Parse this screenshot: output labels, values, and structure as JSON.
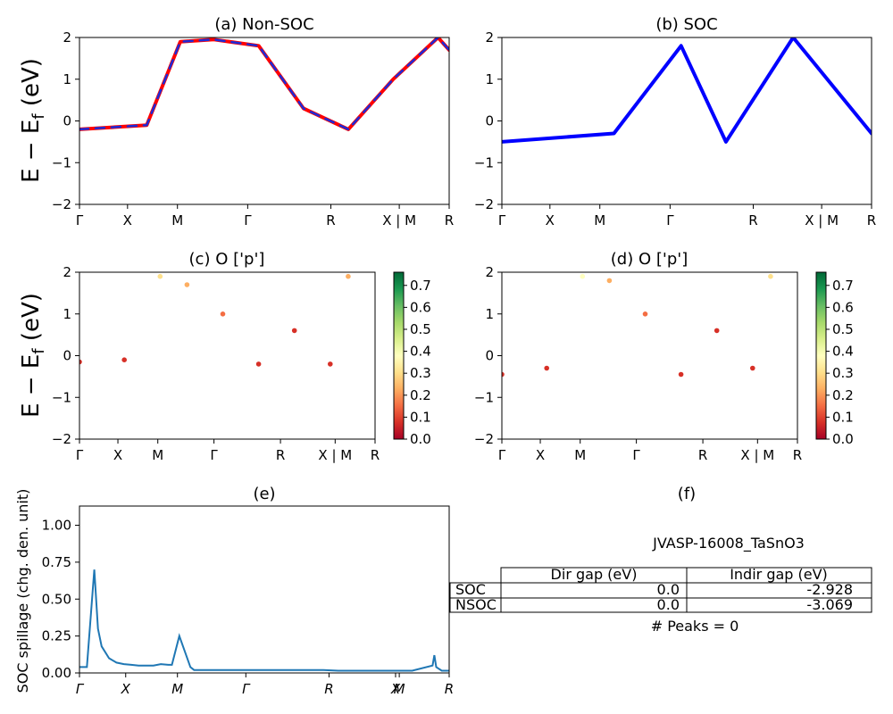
{
  "panels": {
    "a": {
      "title": "(a) Non-SOC"
    },
    "b": {
      "title": "(b) SOC"
    },
    "c": {
      "title": "(c)  O ['p']"
    },
    "d": {
      "title": "(d) O ['p']"
    },
    "e": {
      "title": "(e)"
    },
    "f": {
      "title": "(f)"
    }
  },
  "band_axis": {
    "ylabel_main": "E − E",
    "ylabel_sub": "f",
    "ylabel_tail": " (eV)",
    "yticks": [
      "2",
      "1",
      "0",
      "−1",
      "−2"
    ],
    "kpath_labels": [
      "Γ",
      "X",
      "M",
      "Γ",
      "R",
      "X | M",
      "R"
    ]
  },
  "colorbar": {
    "ticks": [
      "0.7",
      "0.6",
      "0.5",
      "0.4",
      "0.3",
      "0.2",
      "0.1",
      "0.0"
    ],
    "colors": [
      "#a50026",
      "#d73027",
      "#f46d43",
      "#fdae61",
      "#fee08b",
      "#ffffbf",
      "#d9ef8b",
      "#a6d96a",
      "#66bd63",
      "#1a9850",
      "#006837"
    ]
  },
  "spillage_axis": {
    "ylabel": "SOC spillage (chg. den. unit)",
    "yticks": [
      "1.00",
      "0.75",
      "0.50",
      "0.25",
      "0.00"
    ],
    "kpath_labels": [
      "Γ",
      "X",
      "M",
      "Γ",
      "R",
      "X",
      "M",
      "R"
    ]
  },
  "info": {
    "material": "JVASP-16008_TaSnO3",
    "table_header": [
      "",
      "Dir gap (eV)",
      "Indir gap (eV)"
    ],
    "table_rows": [
      {
        "label": "SOC",
        "dir": "0.0",
        "indir": "-2.928"
      },
      {
        "label": "NSOC",
        "dir": "0.0",
        "indir": "-3.069"
      }
    ],
    "peaks": "# Peaks = 0"
  },
  "chart_data": [
    {
      "type": "line",
      "title": "(a) Non-SOC",
      "ylabel": "E − E_f (eV)",
      "ylim": [
        -2,
        2
      ],
      "x_ticks": [
        "Γ",
        "X",
        "M",
        "Γ",
        "R",
        "X | M",
        "R"
      ],
      "series": [
        {
          "color": "#ff0000",
          "style": "solid",
          "x": [
            0,
            0.6,
            0.9,
            1.2,
            1.6,
            2.0,
            2.4,
            2.8,
            3.2,
            3.3
          ],
          "y": [
            -0.2,
            -0.1,
            1.9,
            1.95,
            1.8,
            0.3,
            -0.2,
            1.0,
            2.0,
            1.7
          ]
        },
        {
          "color": "#1c2bd9",
          "style": "dashed",
          "x": [
            0,
            0.6,
            0.9,
            1.2,
            1.6,
            2.0,
            2.4,
            2.8,
            3.2,
            3.3
          ],
          "y": [
            -0.2,
            -0.1,
            1.9,
            1.95,
            1.8,
            0.3,
            -0.2,
            1.0,
            2.0,
            1.7
          ]
        }
      ]
    },
    {
      "type": "line",
      "title": "(b) SOC",
      "ylabel": "",
      "ylim": [
        -2,
        2
      ],
      "x_ticks": [
        "Γ",
        "X",
        "M",
        "Γ",
        "R",
        "X | M",
        "R"
      ],
      "series": [
        {
          "color": "#0000ff",
          "x": [
            0,
            1.0,
            1.6,
            2.0,
            2.6,
            3.3
          ],
          "y": [
            -0.5,
            -0.3,
            1.8,
            -0.5,
            2.0,
            -0.3
          ]
        }
      ]
    },
    {
      "type": "scatter",
      "title": "(c)  O ['p']",
      "ylim": [
        -2,
        2
      ],
      "colorbar_range": [
        0.0,
        0.75
      ],
      "x_ticks": [
        "Γ",
        "X",
        "M",
        "Γ",
        "R",
        "X | M",
        "R"
      ],
      "series": [
        {
          "x": [
            0,
            0.5,
            0.9,
            1.2,
            1.6,
            2.0,
            2.4,
            2.8,
            3.0
          ],
          "y": [
            -0.15,
            -0.1,
            1.9,
            1.7,
            1.0,
            -0.2,
            0.6,
            -0.2,
            1.9
          ],
          "c": [
            0.05,
            0.05,
            0.3,
            0.2,
            0.15,
            0.05,
            0.1,
            0.05,
            0.25
          ]
        }
      ]
    },
    {
      "type": "scatter",
      "title": "(d) O ['p']",
      "ylim": [
        -2,
        2
      ],
      "colorbar_range": [
        0.0,
        0.75
      ],
      "x_ticks": [
        "Γ",
        "X",
        "M",
        "Γ",
        "R",
        "X | M",
        "R"
      ],
      "series": [
        {
          "x": [
            0,
            0.5,
            0.9,
            1.2,
            1.6,
            2.0,
            2.4,
            2.8,
            3.0
          ],
          "y": [
            -0.45,
            -0.3,
            1.9,
            1.8,
            1.0,
            -0.45,
            0.6,
            -0.3,
            1.9
          ],
          "c": [
            0.05,
            0.05,
            0.35,
            0.25,
            0.15,
            0.05,
            0.1,
            0.05,
            0.3
          ]
        }
      ]
    },
    {
      "type": "line",
      "title": "(e)",
      "ylabel": "SOC spillage (chg. den. unit)",
      "ylim": [
        0,
        1.13
      ],
      "x_ticks": [
        "Γ",
        "X",
        "M",
        "Γ",
        "R",
        "X",
        "M",
        "R"
      ],
      "series": [
        {
          "color": "#1f77b4",
          "x": [
            0,
            0.02,
            0.04,
            0.05,
            0.06,
            0.08,
            0.1,
            0.12,
            0.14,
            0.16,
            0.18,
            0.2,
            0.22,
            0.24,
            0.25,
            0.27,
            0.3,
            0.31,
            0.32,
            0.33,
            0.36,
            0.4,
            0.5,
            0.6,
            0.61,
            0.62,
            0.63,
            0.66,
            0.7,
            0.9,
            0.955,
            0.96,
            0.965,
            0.98,
            1.0
          ],
          "y": [
            0.04,
            0.04,
            0.7,
            0.3,
            0.18,
            0.1,
            0.07,
            0.06,
            0.055,
            0.05,
            0.05,
            0.05,
            0.06,
            0.055,
            0.055,
            0.25,
            0.04,
            0.02,
            0.02,
            0.02,
            0.02,
            0.02,
            0.02,
            0.02,
            0.02,
            0.02,
            0.02,
            0.02,
            0.015,
            0.015,
            0.05,
            0.12,
            0.04,
            0.015,
            0.015
          ]
        }
      ]
    }
  ]
}
